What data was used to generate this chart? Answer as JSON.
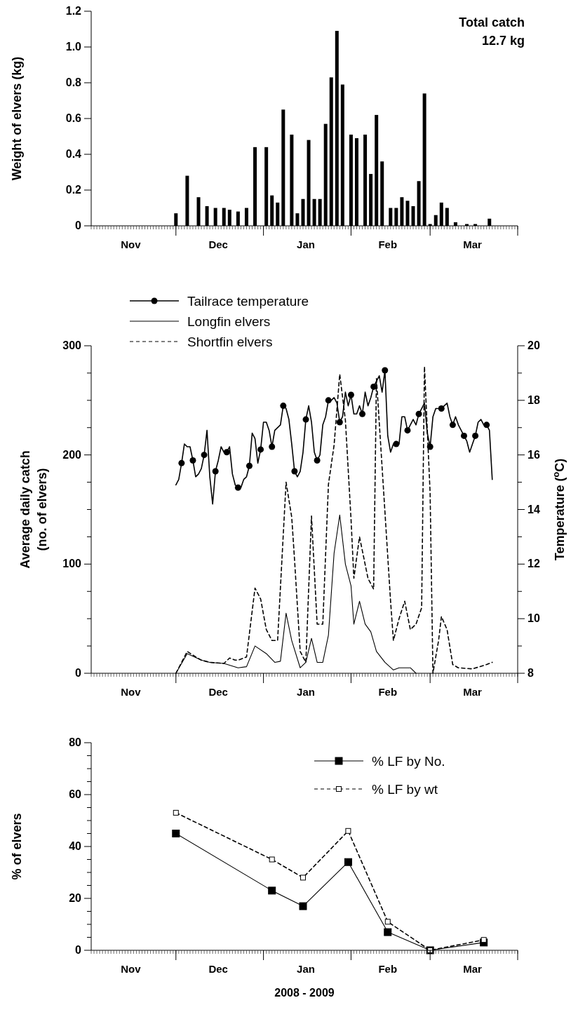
{
  "chart_data": [
    {
      "type": "bar",
      "ylabel": "Weight of elvers (kg)",
      "annotations": [
        "Total catch",
        "12.7 kg"
      ],
      "color": "#000000",
      "xlim": [
        "2008-11-01",
        "2009-04-01"
      ],
      "xticks": [
        {
          "value": "2008-11-15",
          "label": "Nov"
        },
        {
          "value": "2008-12-01",
          "label": null
        },
        {
          "value": "2008-12-16",
          "label": "Dec"
        },
        {
          "value": "2009-01-01",
          "label": null
        },
        {
          "value": "2009-01-16",
          "label": "Jan"
        },
        {
          "value": "2009-02-01",
          "label": null
        },
        {
          "value": "2009-02-14",
          "label": "Feb"
        },
        {
          "value": "2009-03-01",
          "label": null
        },
        {
          "value": "2009-03-16",
          "label": "Mar"
        },
        {
          "value": "2009-04-01",
          "label": null
        }
      ],
      "ylim": [
        0,
        1.2
      ],
      "yticks": [
        0,
        0.2,
        0.4,
        0.6,
        0.8,
        {
          "value": 1,
          "label": "1.0"
        },
        1.2
      ],
      "x": [
        "2008-12-01",
        "2008-12-05",
        "2008-12-09",
        "2008-12-12",
        "2008-12-15",
        "2008-12-18",
        "2008-12-20",
        "2008-12-23",
        "2008-12-26",
        "2008-12-29",
        "2009-01-02",
        "2009-01-04",
        "2009-01-06",
        "2009-01-08",
        "2009-01-11",
        "2009-01-13",
        "2009-01-15",
        "2009-01-17",
        "2009-01-19",
        "2009-01-21",
        "2009-01-23",
        "2009-01-25",
        "2009-01-27",
        "2009-01-29",
        "2009-02-01",
        "2009-02-03",
        "2009-02-06",
        "2009-02-08",
        "2009-02-10",
        "2009-02-12",
        "2009-02-15",
        "2009-02-17",
        "2009-02-19",
        "2009-02-21",
        "2009-02-23",
        "2009-02-25",
        "2009-02-27",
        "2009-03-01",
        "2009-03-03",
        "2009-03-05",
        "2009-03-07",
        "2009-03-10",
        "2009-03-14",
        "2009-03-17",
        "2009-03-22"
      ],
      "values": [
        0.07,
        0.28,
        0.16,
        0.11,
        0.1,
        0.1,
        0.09,
        0.08,
        0.1,
        0.44,
        0.44,
        0.17,
        0.13,
        0.65,
        0.51,
        0.07,
        0.15,
        0.48,
        0.15,
        0.15,
        0.57,
        0.83,
        1.09,
        0.79,
        0.51,
        0.49,
        0.51,
        0.29,
        0.62,
        0.36,
        0.1,
        0.1,
        0.16,
        0.14,
        0.11,
        0.25,
        0.74,
        0.01,
        0.06,
        0.13,
        0.1,
        0.02,
        0.01,
        0.01,
        0.04
      ]
    },
    {
      "type": "line",
      "ylabel": "Average daily catch\n(no. of elvers)",
      "y2label": "Temperature ($^{o}$C)",
      "legend": "top left",
      "xlim": [
        "2008-11-01",
        "2009-04-01"
      ],
      "xticks": [
        {
          "value": "2008-11-15",
          "label": "Nov"
        },
        {
          "value": "2008-12-01",
          "label": null
        },
        {
          "value": "2008-12-16",
          "label": "Dec"
        },
        {
          "value": "2009-01-01",
          "label": null
        },
        {
          "value": "2009-01-16",
          "label": "Jan"
        },
        {
          "value": "2009-02-01",
          "label": null
        },
        {
          "value": "2009-02-14",
          "label": "Feb"
        },
        {
          "value": "2009-03-01",
          "label": null
        },
        {
          "value": "2009-03-16",
          "label": "Mar"
        },
        {
          "value": "2009-04-01",
          "label": null
        }
      ],
      "ylim": [
        0,
        300
      ],
      "yticks": [
        0,
        {
          "value": 25,
          "label": null
        },
        {
          "value": 50,
          "label": null
        },
        {
          "value": 75,
          "label": null
        },
        100,
        {
          "value": 125,
          "label": null
        },
        {
          "value": 150,
          "label": null
        },
        {
          "value": 175,
          "label": null
        },
        200,
        {
          "value": 225,
          "label": null
        },
        {
          "value": 250,
          "label": null
        },
        {
          "value": 275,
          "label": null
        },
        300
      ],
      "y2lim": [
        8,
        20
      ],
      "y2ticks": [
        8,
        {
          "value": 9,
          "label": null
        },
        10,
        {
          "value": 11,
          "label": null
        },
        12,
        {
          "value": 13,
          "label": null
        },
        14,
        {
          "value": 15,
          "label": null
        },
        16,
        {
          "value": 17,
          "label": null
        },
        18,
        {
          "value": 19,
          "label": null
        },
        20
      ],
      "series": [
        {
          "name": "Tailrace temperature",
          "axis": "y2",
          "color": "#000000",
          "x": [
            "2008-12-01",
            "2008-12-02",
            "2008-12-03",
            "2008-12-04",
            "2008-12-05",
            "2008-12-06",
            "2008-12-07",
            "2008-12-08",
            "2008-12-09",
            "2008-12-10",
            "2008-12-11",
            "2008-12-12",
            "2008-12-13",
            "2008-12-14",
            "2008-12-15",
            "2008-12-16",
            "2008-12-17",
            "2008-12-18",
            "2008-12-19",
            "2008-12-20",
            "2008-12-21",
            "2008-12-22",
            "2008-12-23",
            "2008-12-24",
            "2008-12-25",
            "2008-12-26",
            "2008-12-27",
            "2008-12-28",
            "2008-12-29",
            "2008-12-30",
            "2008-12-31",
            "2009-01-01",
            "2009-01-02",
            "2009-01-03",
            "2009-01-04",
            "2009-01-05",
            "2009-01-07",
            "2009-01-08",
            "2009-01-09",
            "2009-01-10",
            "2009-01-11",
            "2009-01-12",
            "2009-01-13",
            "2009-01-14",
            "2009-01-15",
            "2009-01-16",
            "2009-01-17",
            "2009-01-18",
            "2009-01-19",
            "2009-01-20",
            "2009-01-21",
            "2009-01-22",
            "2009-01-23",
            "2009-01-24",
            "2009-01-25",
            "2009-01-26",
            "2009-01-27",
            "2009-01-28",
            "2009-01-29",
            "2009-01-30",
            "2009-01-31",
            "2009-02-01",
            "2009-02-02",
            "2009-02-03",
            "2009-02-04",
            "2009-02-05",
            "2009-02-06",
            "2009-02-07",
            "2009-02-08",
            "2009-02-09",
            "2009-02-10",
            "2009-02-11",
            "2009-02-12",
            "2009-02-13",
            "2009-02-14",
            "2009-02-15",
            "2009-02-16",
            "2009-02-17",
            "2009-02-18",
            "2009-02-19",
            "2009-02-20",
            "2009-02-21",
            "2009-02-22",
            "2009-02-23",
            "2009-02-24",
            "2009-02-25",
            "2009-02-26",
            "2009-02-27",
            "2009-02-28",
            "2009-03-01",
            "2009-03-02",
            "2009-03-03",
            "2009-03-04",
            "2009-03-05",
            "2009-03-06",
            "2009-03-07",
            "2009-03-08",
            "2009-03-09",
            "2009-03-10",
            "2009-03-11",
            "2009-03-12",
            "2009-03-13",
            "2009-03-14",
            "2009-03-15",
            "2009-03-16",
            "2009-03-17",
            "2009-03-18",
            "2009-03-19",
            "2009-03-20",
            "2009-03-21",
            "2009-03-22",
            "2009-03-23"
          ],
          "values": [
            14.9,
            15.1,
            15.7,
            16.4,
            16.3,
            16.3,
            15.8,
            15.2,
            15.3,
            15.5,
            16.0,
            16.9,
            15.2,
            14.2,
            15.4,
            15.8,
            16.3,
            16.1,
            16.1,
            16.3,
            15.3,
            14.9,
            14.8,
            14.8,
            15.1,
            15.2,
            15.6,
            16.8,
            16.6,
            15.7,
            16.2,
            17.2,
            17.2,
            16.9,
            16.3,
            16.9,
            17.1,
            17.8,
            17.7,
            17.3,
            16.4,
            15.4,
            15.2,
            15.4,
            16.1,
            17.3,
            17.8,
            17.2,
            16.1,
            15.8,
            16.0,
            17.1,
            17.4,
            18.0,
            18.0,
            18.1,
            17.9,
            17.2,
            17.4,
            18.3,
            17.8,
            18.2,
            17.5,
            17.5,
            17.8,
            17.5,
            18.3,
            17.8,
            18.1,
            18.5,
            18.7,
            18.9,
            18.3,
            19.1,
            16.7,
            16.1,
            16.4,
            16.4,
            16.4,
            17.4,
            17.4,
            16.9,
            17.1,
            17.3,
            17.1,
            17.5,
            17.7,
            17.9,
            16.8,
            16.3,
            17.4,
            17.7,
            17.7,
            17.7,
            17.8,
            17.9,
            17.4,
            17.1,
            17.4,
            17.1,
            16.9,
            16.7,
            16.5,
            16.1,
            16.4,
            16.7,
            17.2,
            17.3,
            17.1,
            17.1,
            16.9,
            15.1
          ]
        },
        {
          "type": "scatter",
          "axis": "y2",
          "color": "#000000",
          "marker": "circle",
          "x": [
            "2008-12-03",
            "2008-12-07",
            "2008-12-11",
            "2008-12-15",
            "2008-12-19",
            "2008-12-23",
            "2008-12-27",
            "2008-12-31",
            "2009-01-04",
            "2009-01-08",
            "2009-01-12",
            "2009-01-16",
            "2009-01-20",
            "2009-01-24",
            "2009-01-28",
            "2009-02-01",
            "2009-02-05",
            "2009-02-09",
            "2009-02-13",
            "2009-02-17",
            "2009-02-21",
            "2009-02-25",
            "2009-03-01",
            "2009-03-05",
            "2009-03-09",
            "2009-03-13",
            "2009-03-17",
            "2009-03-21"
          ],
          "values": [
            15.7,
            15.8,
            16.0,
            15.4,
            16.1,
            14.8,
            15.6,
            16.2,
            16.3,
            17.8,
            15.4,
            17.3,
            15.8,
            18.0,
            17.2,
            18.2,
            17.5,
            18.5,
            19.1,
            16.4,
            16.9,
            17.5,
            16.3,
            17.7,
            17.1,
            16.7,
            16.7,
            17.1
          ]
        },
        {
          "name": "Longfin elvers",
          "line_style": "solid",
          "color": "#000000",
          "x": [
            "2008-12-01",
            "2008-12-05",
            "2008-12-10",
            "2008-12-13",
            "2008-12-18",
            "2008-12-23",
            "2008-12-26",
            "2008-12-29",
            "2009-01-02",
            "2009-01-05",
            "2009-01-07",
            "2009-01-09",
            "2009-01-11",
            "2009-01-14",
            "2009-01-16",
            "2009-01-18",
            "2009-01-20",
            "2009-01-22",
            "2009-01-24",
            "2009-01-26",
            "2009-01-28",
            "2009-01-30",
            "2009-02-01",
            "2009-02-02",
            "2009-02-04",
            "2009-02-06",
            "2009-02-08",
            "2009-02-10",
            "2009-02-13",
            "2009-02-16",
            "2009-02-18",
            "2009-02-20",
            "2009-02-22",
            "2009-02-24"
          ],
          "values": [
            0,
            18,
            12,
            10,
            9,
            5,
            6,
            25,
            18,
            10,
            11,
            55,
            30,
            5,
            10,
            32,
            10,
            10,
            35,
            110,
            145,
            100,
            80,
            45,
            66,
            45,
            38,
            20,
            10,
            3,
            5,
            5,
            5,
            0
          ]
        },
        {
          "name": "Shortfin elvers",
          "line_style": "dashed",
          "color": "#000000",
          "x": [
            "2008-12-01",
            "2008-12-03",
            "2008-12-05",
            "2008-12-08",
            "2008-12-10",
            "2008-12-13",
            "2008-12-18",
            "2008-12-20",
            "2008-12-22",
            "2008-12-23",
            "2008-12-26",
            "2008-12-29",
            "2008-12-31",
            "2009-01-02",
            "2009-01-04",
            "2009-01-06",
            "2009-01-09",
            "2009-01-11",
            "2009-01-12",
            "2009-01-14",
            "2009-01-16",
            "2009-01-18",
            "2009-01-20",
            "2009-01-22",
            "2009-01-24",
            "2009-01-26",
            "2009-01-28",
            "2009-01-30",
            "2009-02-01",
            "2009-02-02",
            "2009-02-04",
            "2009-02-07",
            "2009-02-09",
            "2009-02-10",
            "2009-02-13",
            "2009-02-15",
            "2009-02-16",
            "2009-02-18",
            "2009-02-20",
            "2009-02-22",
            "2009-02-24",
            "2009-02-26",
            "2009-02-27",
            "2009-03-01",
            "2009-03-02",
            "2009-03-04",
            "2009-03-05",
            "2009-03-07",
            "2009-03-09",
            "2009-03-11",
            "2009-03-16",
            "2009-03-21",
            "2009-03-23"
          ],
          "values": [
            0,
            10,
            20,
            15,
            12,
            10,
            9,
            14,
            12,
            12,
            15,
            78,
            68,
            40,
            30,
            30,
            175,
            143,
            104,
            20,
            10,
            144,
            45,
            45,
            173,
            209,
            274,
            232,
            141,
            87,
            125,
            87,
            77,
            270,
            148,
            66,
            30,
            50,
            66,
            40,
            45,
            60,
            281,
            165,
            0,
            30,
            52,
            40,
            8,
            5,
            4,
            8,
            10
          ]
        }
      ]
    },
    {
      "type": "line",
      "ylabel": "% of elvers",
      "xlabel": "2008 - 2009",
      "legend": "top right",
      "marker": "square",
      "xlim": [
        "2008-11-01",
        "2009-04-01"
      ],
      "xticks": [
        {
          "value": "2008-11-15",
          "label": "Nov"
        },
        {
          "value": "2008-12-01",
          "label": null
        },
        {
          "value": "2008-12-16",
          "label": "Dec"
        },
        {
          "value": "2009-01-01",
          "label": null
        },
        {
          "value": "2009-01-16",
          "label": "Jan"
        },
        {
          "value": "2009-02-01",
          "label": null
        },
        {
          "value": "2009-02-14",
          "label": "Feb"
        },
        {
          "value": "2009-03-01",
          "label": null
        },
        {
          "value": "2009-03-16",
          "label": "Mar"
        },
        {
          "value": "2009-04-01",
          "label": null
        }
      ],
      "ylim": [
        0,
        80
      ],
      "yticks": [
        0,
        {
          "value": 5,
          "label": null
        },
        {
          "value": 10,
          "label": null
        },
        {
          "value": 15,
          "label": null
        },
        20,
        {
          "value": 25,
          "label": null
        },
        {
          "value": 30,
          "label": null
        },
        {
          "value": 35,
          "label": null
        },
        40,
        {
          "value": 45,
          "label": null
        },
        {
          "value": 50,
          "label": null
        },
        {
          "value": 55,
          "label": null
        },
        60,
        {
          "value": 65,
          "label": null
        },
        {
          "value": 70,
          "label": null
        },
        {
          "value": 75,
          "label": null
        },
        80
      ],
      "x": [
        "2008-12-01",
        "2009-01-04",
        "2009-01-15",
        "2009-01-31",
        "2009-02-14",
        "2009-03-01",
        "2009-03-20"
      ],
      "series": [
        {
          "name": "% LF by No.",
          "color": "#000000",
          "line_style": "solid",
          "values": [
            45,
            23,
            17,
            34,
            7,
            0,
            3
          ]
        },
        {
          "name": "% LF by wt",
          "color": "#000000",
          "line_style": "dashed",
          "values": [
            53,
            35,
            28,
            46,
            11,
            0,
            4
          ]
        }
      ]
    }
  ]
}
